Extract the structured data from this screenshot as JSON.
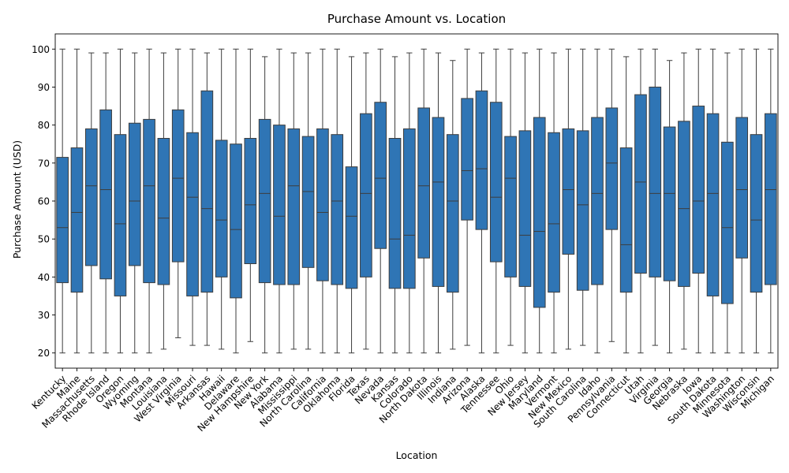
{
  "chart_data": {
    "type": "box",
    "title": "Purchase Amount vs. Location",
    "xlabel": "Location",
    "ylabel": "Purchase Amount (USD)",
    "ylim": [
      16,
      104
    ],
    "yticks": [
      20,
      30,
      40,
      50,
      60,
      70,
      80,
      90,
      100
    ],
    "grid": false,
    "box_color": "#2f75b5",
    "line_color": "#3d3d3d",
    "categories": [
      "Kentucky",
      "Maine",
      "Massachusetts",
      "Rhode Island",
      "Oregon",
      "Wyoming",
      "Montana",
      "Louisiana",
      "West Virginia",
      "Missouri",
      "Arkansas",
      "Hawaii",
      "Delaware",
      "New Hampshire",
      "New York",
      "Alabama",
      "Mississippi",
      "North Carolina",
      "California",
      "Oklahoma",
      "Florida",
      "Texas",
      "Nevada",
      "Kansas",
      "Colorado",
      "North Dakota",
      "Illinois",
      "Indiana",
      "Arizona",
      "Alaska",
      "Tennessee",
      "Ohio",
      "New Jersey",
      "Maryland",
      "Vermont",
      "New Mexico",
      "South Carolina",
      "Idaho",
      "Pennsylvania",
      "Connecticut",
      "Utah",
      "Virginia",
      "Georgia",
      "Nebraska",
      "Iowa",
      "South Dakota",
      "Minnesota",
      "Washington",
      "Wisconsin",
      "Michigan"
    ],
    "boxes": [
      {
        "min": 20,
        "q1": 38.5,
        "median": 53,
        "q3": 71.5,
        "max": 100
      },
      {
        "min": 20,
        "q1": 36,
        "median": 57,
        "q3": 74,
        "max": 100
      },
      {
        "min": 20,
        "q1": 43,
        "median": 64,
        "q3": 79,
        "max": 99
      },
      {
        "min": 20,
        "q1": 39.5,
        "median": 63,
        "q3": 84,
        "max": 99
      },
      {
        "min": 20,
        "q1": 35,
        "median": 54,
        "q3": 77.5,
        "max": 100
      },
      {
        "min": 20,
        "q1": 43,
        "median": 60,
        "q3": 80.5,
        "max": 99
      },
      {
        "min": 20,
        "q1": 38.5,
        "median": 64,
        "q3": 81.5,
        "max": 100
      },
      {
        "min": 21,
        "q1": 38,
        "median": 55.5,
        "q3": 76.5,
        "max": 99
      },
      {
        "min": 24,
        "q1": 44,
        "median": 66,
        "q3": 84,
        "max": 100
      },
      {
        "min": 22,
        "q1": 35,
        "median": 61,
        "q3": 78,
        "max": 100
      },
      {
        "min": 22,
        "q1": 36,
        "median": 58,
        "q3": 89,
        "max": 99
      },
      {
        "min": 21,
        "q1": 40,
        "median": 55,
        "q3": 76,
        "max": 100
      },
      {
        "min": 20,
        "q1": 34.5,
        "median": 52.5,
        "q3": 75,
        "max": 100
      },
      {
        "min": 23,
        "q1": 43.5,
        "median": 59,
        "q3": 76.5,
        "max": 100
      },
      {
        "min": 20,
        "q1": 38.5,
        "median": 62,
        "q3": 81.5,
        "max": 98
      },
      {
        "min": 20,
        "q1": 38,
        "median": 56,
        "q3": 80,
        "max": 100
      },
      {
        "min": 21,
        "q1": 38,
        "median": 64,
        "q3": 79,
        "max": 99
      },
      {
        "min": 21,
        "q1": 42.5,
        "median": 62.5,
        "q3": 77,
        "max": 99
      },
      {
        "min": 20,
        "q1": 39,
        "median": 57,
        "q3": 79,
        "max": 100
      },
      {
        "min": 20,
        "q1": 38,
        "median": 60,
        "q3": 77.5,
        "max": 100
      },
      {
        "min": 20,
        "q1": 37,
        "median": 56,
        "q3": 69,
        "max": 98
      },
      {
        "min": 21,
        "q1": 40,
        "median": 62,
        "q3": 83,
        "max": 99
      },
      {
        "min": 20,
        "q1": 47.5,
        "median": 66,
        "q3": 86,
        "max": 100
      },
      {
        "min": 20,
        "q1": 37,
        "median": 50,
        "q3": 76.5,
        "max": 98
      },
      {
        "min": 20,
        "q1": 37,
        "median": 51,
        "q3": 79,
        "max": 99
      },
      {
        "min": 20,
        "q1": 45,
        "median": 64,
        "q3": 84.5,
        "max": 100
      },
      {
        "min": 20,
        "q1": 37.5,
        "median": 65,
        "q3": 82,
        "max": 99
      },
      {
        "min": 21,
        "q1": 36,
        "median": 60,
        "q3": 77.5,
        "max": 97
      },
      {
        "min": 22,
        "q1": 55,
        "median": 68,
        "q3": 87,
        "max": 100
      },
      {
        "min": 20,
        "q1": 52.5,
        "median": 68.5,
        "q3": 89,
        "max": 99
      },
      {
        "min": 20,
        "q1": 44,
        "median": 61,
        "q3": 86,
        "max": 100
      },
      {
        "min": 22,
        "q1": 40,
        "median": 66,
        "q3": 77,
        "max": 100
      },
      {
        "min": 20,
        "q1": 37.5,
        "median": 51,
        "q3": 78.5,
        "max": 99
      },
      {
        "min": 20,
        "q1": 32,
        "median": 52,
        "q3": 82,
        "max": 100
      },
      {
        "min": 20,
        "q1": 36,
        "median": 54,
        "q3": 78,
        "max": 99
      },
      {
        "min": 21,
        "q1": 46,
        "median": 63,
        "q3": 79,
        "max": 100
      },
      {
        "min": 22,
        "q1": 36.5,
        "median": 59,
        "q3": 78.5,
        "max": 100
      },
      {
        "min": 20,
        "q1": 38,
        "median": 62,
        "q3": 82,
        "max": 100
      },
      {
        "min": 23,
        "q1": 52.5,
        "median": 70,
        "q3": 84.5,
        "max": 100
      },
      {
        "min": 20,
        "q1": 36,
        "median": 48.5,
        "q3": 74,
        "max": 98
      },
      {
        "min": 20,
        "q1": 41,
        "median": 65,
        "q3": 88,
        "max": 100
      },
      {
        "min": 22,
        "q1": 40,
        "median": 62,
        "q3": 90,
        "max": 100
      },
      {
        "min": 20,
        "q1": 39,
        "median": 62,
        "q3": 79.5,
        "max": 97
      },
      {
        "min": 21,
        "q1": 37.5,
        "median": 58,
        "q3": 81,
        "max": 99
      },
      {
        "min": 20,
        "q1": 41,
        "median": 60,
        "q3": 85,
        "max": 100
      },
      {
        "min": 20,
        "q1": 35,
        "median": 62,
        "q3": 83,
        "max": 100
      },
      {
        "min": 20,
        "q1": 33,
        "median": 53,
        "q3": 75.5,
        "max": 99
      },
      {
        "min": 20,
        "q1": 45,
        "median": 63,
        "q3": 82,
        "max": 100
      },
      {
        "min": 20,
        "q1": 36,
        "median": 55,
        "q3": 77.5,
        "max": 100
      },
      {
        "min": 20,
        "q1": 38,
        "median": 63,
        "q3": 83,
        "max": 100
      }
    ]
  }
}
